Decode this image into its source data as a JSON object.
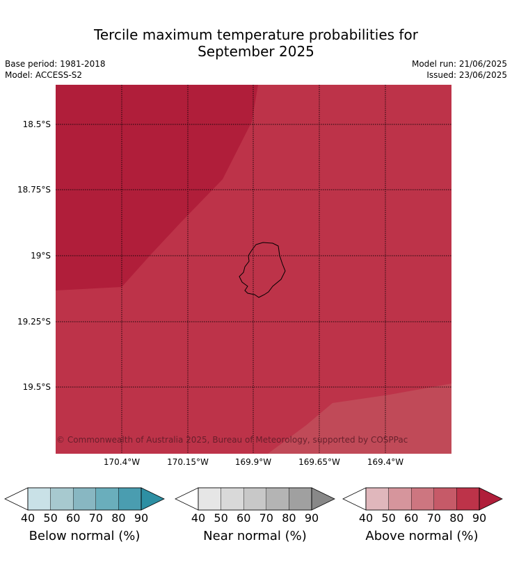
{
  "title_line1": "Tercile maximum temperature probabilities for",
  "title_line2": "September 2025",
  "meta": {
    "base_period": "Base period: 1981-2018",
    "model": "Model: ACCESS-S2",
    "model_run": "Model run: 21/06/2025",
    "issued": "Issued: 23/06/2025"
  },
  "map": {
    "longitude_ticks": [
      "170.4°W",
      "170.15°W",
      "169.9°W",
      "169.65°W",
      "169.4°W"
    ],
    "latitude_ticks": [
      "18.5°S",
      "18.75°S",
      "19°S",
      "19.25°S",
      "19.5°S"
    ],
    "copyright": "© Commonwealth of Australia 2025, Bureau of Meteorology, supported by COSPPac",
    "region_colors": {
      "above_90": "#b01e3a",
      "above_80": "#bd3349",
      "above_70": "#c04a58"
    }
  },
  "colorbars": [
    {
      "label": "Below normal (%)",
      "ticks": [
        "40",
        "50",
        "60",
        "70",
        "80",
        "90"
      ],
      "colors": [
        "#ffffff",
        "#c9e1e7",
        "#a7c9cf",
        "#88b7c2",
        "#6aaebc",
        "#4a9db0",
        "#2e8fa3"
      ]
    },
    {
      "label": "Near normal (%)",
      "ticks": [
        "40",
        "50",
        "60",
        "70",
        "80",
        "90"
      ],
      "colors": [
        "#ffffff",
        "#e6e6e6",
        "#d9d9d9",
        "#c8c8c8",
        "#b4b4b4",
        "#a0a0a0",
        "#888888"
      ]
    },
    {
      "label": "Above normal (%)",
      "ticks": [
        "40",
        "50",
        "60",
        "70",
        "80",
        "90"
      ],
      "colors": [
        "#ffffff",
        "#e0b7bc",
        "#d6959c",
        "#cd7680",
        "#c65a68",
        "#bd3349",
        "#b01e3a"
      ]
    }
  ]
}
